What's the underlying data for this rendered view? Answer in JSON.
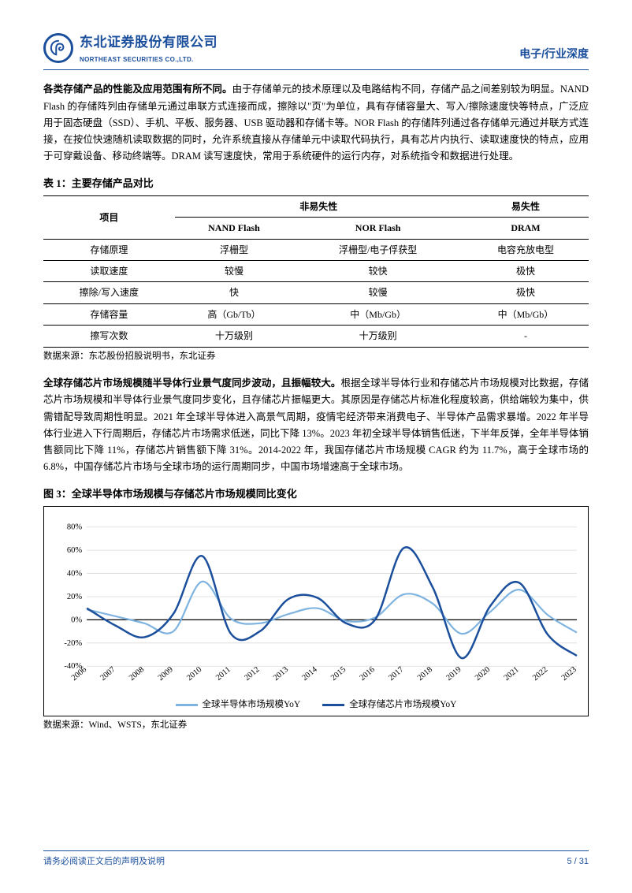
{
  "header": {
    "company_cn": "东北证券股份有限公司",
    "company_en": "NORTHEAST SECURITIES CO.,LTD.",
    "section": "电子/行业深度"
  },
  "para1_lead": "各类存储产品的性能及应用范围有所不同。",
  "para1_body": "由于存储单元的技术原理以及电路结构不同，存储产品之间差别较为明显。NAND Flash 的存储阵列由存储单元通过串联方式连接而成，擦除以\"页\"为单位，具有存储容量大、写入/擦除速度快等特点，广泛应用于固态硬盘（SSD）、手机、平板、服务器、USB 驱动器和存储卡等。NOR Flash 的存储阵列通过各存储单元通过并联方式连接，在按位快速随机读取数据的同时，允许系统直接从存储单元中读取代码执行，具有芯片内执行、读取速度快的特点，应用于可穿戴设备、移动终端等。DRAM 读写速度快，常用于系统硬件的运行内存，对系统指令和数据进行处理。",
  "table1": {
    "title": "表  1：主要存储产品对比",
    "group_left": "非易失性",
    "group_right": "易失性",
    "header_row": [
      "项目",
      "NAND Flash",
      "NOR Flash",
      "DRAM"
    ],
    "rows": [
      [
        "存储原理",
        "浮栅型",
        "浮栅型/电子俘获型",
        "电容充放电型"
      ],
      [
        "读取速度",
        "较慢",
        "较快",
        "极快"
      ],
      [
        "擦除/写入速度",
        "快",
        "较慢",
        "极快"
      ],
      [
        "存储容量",
        "高（Gb/Tb）",
        "中（Mb/Gb）",
        "中（Mb/Gb）"
      ],
      [
        "擦写次数",
        "十万级别",
        "十万级别",
        "-"
      ]
    ],
    "source": "数据来源：东芯股份招股说明书，东北证券"
  },
  "para2_lead": "全球存储芯片市场规模随半导体行业景气度同步波动，且振幅较大。",
  "para2_body": "根据全球半导体行业和存储芯片市场规模对比数据，存储芯片市场规模和半导体行业景气度同步变化，且存储芯片振幅更大。其原因是存储芯片标准化程度较高，供给端较为集中，供需错配导致周期性明显。2021 年全球半导体进入高景气周期，疫情宅经济带来消费电子、半导体产品需求暴增。2022 年半导体行业进入下行周期后，存储芯片市场需求低迷，同比下降 13%。2023 年初全球半导体销售低迷，下半年反弹，全年半导体销售额同比下降 11%，存储芯片销售额下降 31%。2014-2022 年，我国存储芯片市场规模 CAGR 约为 11.7%，高于全球市场的 6.8%，中国存储芯片市场与全球市场的运行周期同步，中国市场增速高于全球市场。",
  "chart": {
    "title": "图  3：全球半导体市场规模与存储芯片市场规模同比变化",
    "ylim": [
      -40,
      80
    ],
    "ytick_step": 20,
    "years": [
      "2006",
      "2007",
      "2008",
      "2009",
      "2010",
      "2011",
      "2012",
      "2013",
      "2014",
      "2015",
      "2016",
      "2017",
      "2018",
      "2019",
      "2020",
      "2021",
      "2022",
      "2023"
    ],
    "series": [
      {
        "name": "全球半导体市场规模YoY",
        "color": "#7fb3e0",
        "line_width": 2.2,
        "values": [
          9,
          3,
          -3,
          -10,
          33,
          1,
          -3,
          5,
          10,
          -1,
          2,
          22,
          14,
          -12,
          7,
          26,
          4,
          -11
        ]
      },
      {
        "name": "全球存储芯片市场规模YoY",
        "color": "#1b4f9c",
        "line_width": 2.5,
        "values": [
          10,
          -5,
          -15,
          5,
          55,
          -12,
          -10,
          18,
          19,
          -3,
          0,
          62,
          28,
          -33,
          12,
          32,
          -13,
          -31
        ]
      }
    ],
    "grid_color": "#d9d9d9",
    "zero_line_color": "#000000",
    "source": "数据来源：Wind、WSTS，东北证券"
  },
  "footer": {
    "disclaimer": "请务必阅读正文后的声明及说明",
    "page": "5  /  31"
  }
}
